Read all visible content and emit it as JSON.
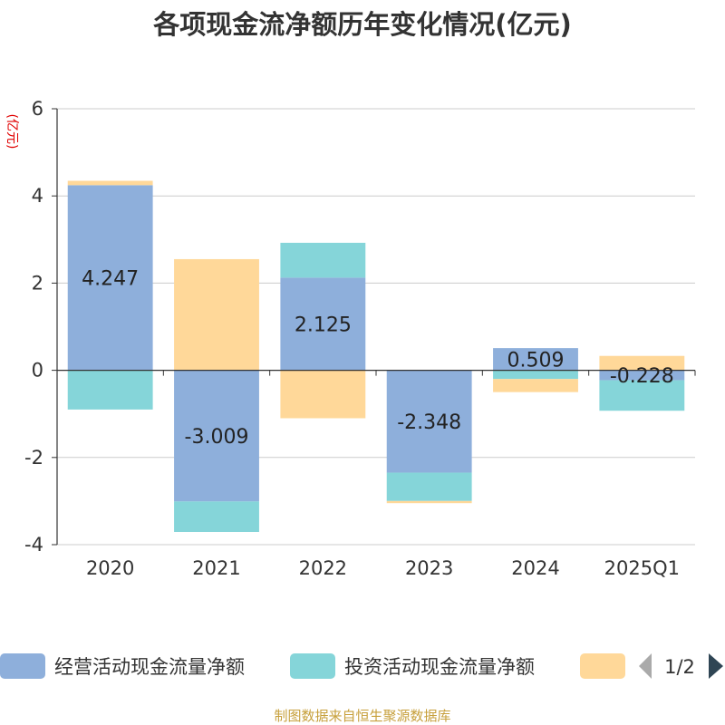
{
  "chart_data": {
    "type": "bar",
    "stacked": true,
    "title": "各项现金流净额历年变化情况(亿元)",
    "unit_label": "(亿元)",
    "categories": [
      "2020",
      "2021",
      "2022",
      "2023",
      "2024",
      "2025Q1"
    ],
    "ylim": [
      -4,
      6
    ],
    "yticks": [
      6,
      4,
      2,
      0,
      -2,
      -4
    ],
    "ytick_labels": [
      "6",
      "4",
      "2",
      "0",
      "-2",
      "-4"
    ],
    "grid": true,
    "series": [
      {
        "name": "经营活动现金流量净额",
        "color": "#8eafdb",
        "values": [
          4.247,
          -3.009,
          2.125,
          -2.348,
          0.509,
          -0.228
        ],
        "labels": [
          "4.247",
          "-3.009",
          "2.125",
          "-2.348",
          "0.509",
          "-0.228"
        ]
      },
      {
        "name": "投资活动现金流量净额",
        "color": "#85d5d9",
        "values": [
          -0.9,
          -0.7,
          0.8,
          -0.65,
          -0.2,
          -0.7
        ]
      },
      {
        "name": "",
        "color": "#ffd899",
        "values": [
          0.1,
          2.55,
          -1.1,
          -0.05,
          -0.3,
          0.33
        ]
      }
    ],
    "legend": {
      "position": "bottom",
      "page": "1/2"
    },
    "source": "制图数据来自恒生聚源数据库"
  }
}
